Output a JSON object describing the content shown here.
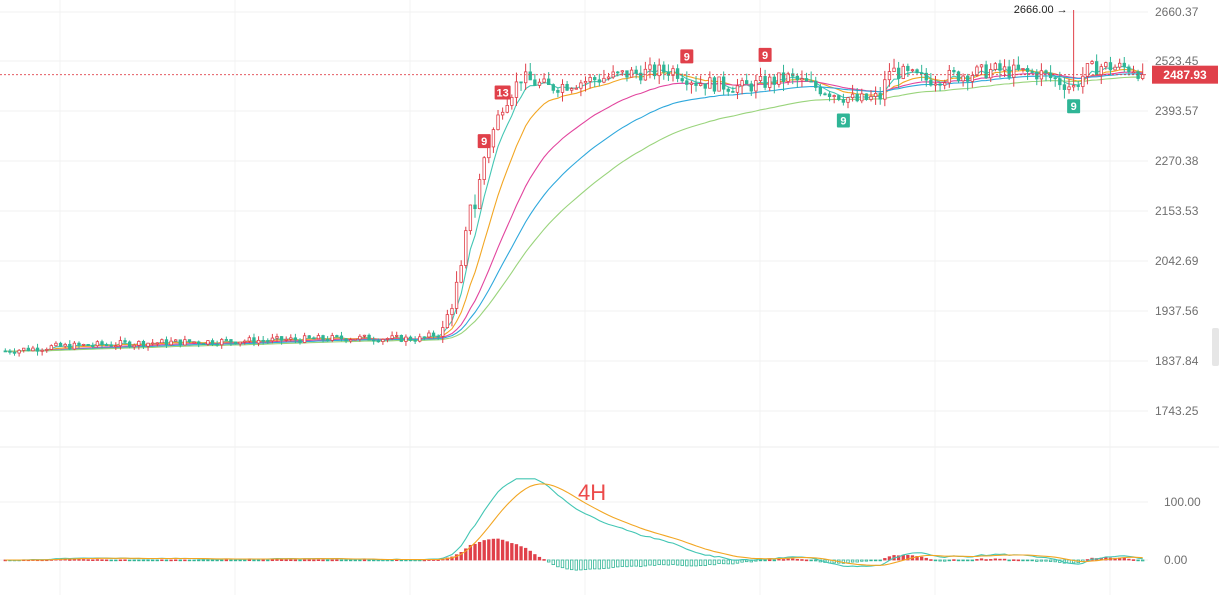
{
  "chart_data": [
    {
      "type": "candlestick",
      "panel": "price",
      "y_ticks": [
        "2660.37",
        "2523.45",
        "2393.57",
        "2270.38",
        "2153.53",
        "2042.69",
        "1937.56",
        "1837.84",
        "1743.25"
      ],
      "last_price": "2487.93",
      "high_marker": {
        "text": "2666.00 →",
        "value": 2666.0
      },
      "td_labels": [
        {
          "text": "9",
          "color": "red",
          "bar": 104
        },
        {
          "text": "13",
          "color": "red",
          "bar": 108
        },
        {
          "text": "9",
          "color": "red",
          "bar": 148
        },
        {
          "text": "9",
          "color": "red",
          "bar": 165
        },
        {
          "text": "9",
          "color": "green",
          "bar": 182
        },
        {
          "text": "9",
          "color": "green",
          "bar": 232
        }
      ],
      "ylim": [
        1700,
        2680
      ],
      "grid": true,
      "colors": {
        "up": "#e0404a",
        "down": "#2fb596",
        "last_price_bg": "#e0404a"
      },
      "series_colors": [
        "#43c6b4",
        "#f2a623",
        "#e2459e",
        "#2ea8dc",
        "#9ad47c"
      ],
      "bars": 248,
      "breakout_bar": 95
    },
    {
      "type": "macd",
      "panel": "indicator",
      "label": "4H",
      "y_ticks": [
        "100.00",
        "0.00"
      ],
      "ylim": [
        -45,
        140
      ],
      "colors": {
        "dif": "#43c6b4",
        "dea": "#f2a623",
        "hist_up": "#e0404a",
        "hist_down": "#2fb596",
        "label": "#ec4a4a"
      }
    }
  ]
}
